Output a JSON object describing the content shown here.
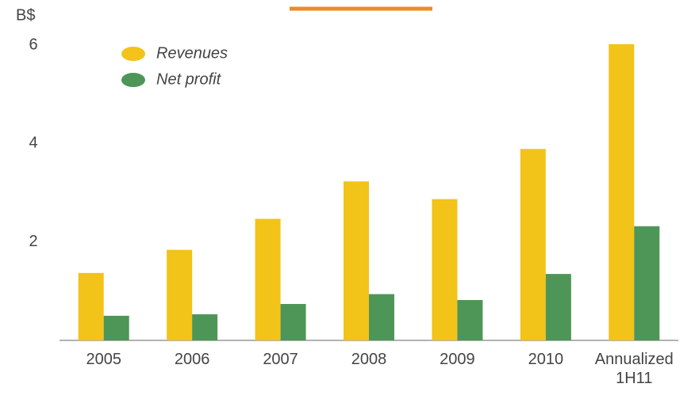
{
  "chart_data": {
    "type": "bar",
    "y_label": "B$",
    "categories": [
      "2005",
      "2006",
      "2007",
      "2008",
      "2009",
      "2010",
      "Annualized 1H11"
    ],
    "series": [
      {
        "name": "Revenues",
        "color": "#f2c318",
        "values": [
          1.37,
          1.84,
          2.47,
          3.23,
          2.87,
          3.89,
          6.02
        ]
      },
      {
        "name": "Net profit",
        "color": "#4e9657",
        "values": [
          0.5,
          0.53,
          0.74,
          0.94,
          0.82,
          1.35,
          2.32
        ]
      }
    ],
    "ylim": [
      0,
      6
    ],
    "yticks": [
      2,
      4,
      6
    ],
    "grid": false,
    "legend": "top-left"
  }
}
